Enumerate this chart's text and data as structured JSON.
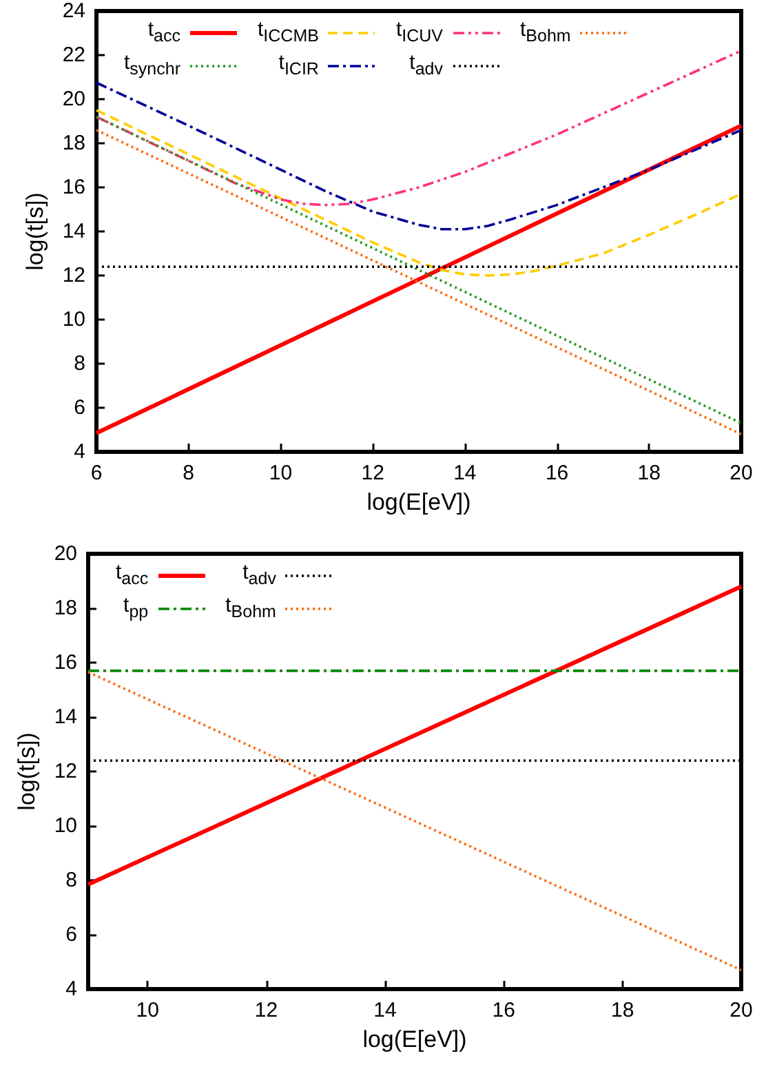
{
  "chart_data": [
    {
      "type": "line",
      "xlabel": "log(E[eV])",
      "ylabel": "log(t[s])",
      "xlim": [
        6,
        20
      ],
      "xticks": [
        6,
        8,
        10,
        12,
        14,
        16,
        18,
        20
      ],
      "ylim": [
        4,
        24
      ],
      "yticks": [
        4,
        6,
        8,
        10,
        12,
        14,
        16,
        18,
        20,
        22,
        24
      ],
      "grid": false,
      "legend": "top",
      "series": [
        {
          "name": "t$_{acc}$",
          "color": "#ff0000",
          "line_style": "solid",
          "x": [
            6,
            20
          ],
          "values": [
            4.85,
            18.8
          ]
        },
        {
          "name": "t$_{IC}$$_{CMB}$",
          "color": "#ffcc00",
          "line_style": "dashed",
          "x": [
            6,
            8,
            10,
            11,
            12,
            13,
            13.5,
            14,
            14.5,
            15,
            15.5,
            16,
            17,
            18,
            19,
            20
          ],
          "values": [
            19.5,
            17.5,
            15.5,
            14.5,
            13.5,
            12.6,
            12.25,
            12.05,
            12.0,
            12.05,
            12.2,
            12.45,
            13.0,
            13.85,
            14.75,
            15.7
          ]
        },
        {
          "name": "t$_{IC}$$_{UV}$",
          "color": "#ff3377",
          "line_style": "dashdotdot",
          "x": [
            6,
            8,
            9,
            10,
            10.5,
            11,
            11.5,
            12,
            13,
            14,
            16,
            18,
            20
          ],
          "values": [
            19.2,
            17.2,
            16.2,
            15.45,
            15.25,
            15.2,
            15.25,
            15.45,
            16.0,
            16.7,
            18.4,
            20.3,
            22.2
          ]
        },
        {
          "name": "t$_{Bohm}$",
          "color": "#ff6600",
          "line_style": "dotted",
          "x": [
            6,
            20
          ],
          "values": [
            18.6,
            4.8
          ]
        },
        {
          "name": "t$_{synchr}$",
          "color": "#229922",
          "line_style": "dotted",
          "x": [
            6,
            20
          ],
          "values": [
            19.2,
            5.3
          ]
        },
        {
          "name": "t$_{IC}$$_{IR}$",
          "color": "#000099",
          "line_style": "dashdot",
          "x": [
            6,
            8,
            10,
            11,
            12,
            13,
            13.5,
            14,
            14.5,
            15,
            16,
            17,
            18,
            19,
            20
          ],
          "values": [
            20.75,
            18.8,
            16.8,
            15.8,
            14.9,
            14.3,
            14.1,
            14.1,
            14.25,
            14.55,
            15.2,
            16.0,
            16.8,
            17.7,
            18.6
          ]
        },
        {
          "name": "t$_{adv}$",
          "color": "#000000",
          "line_style": "dotted",
          "x": [
            6,
            20
          ],
          "values": [
            12.4,
            12.4
          ]
        }
      ]
    },
    {
      "type": "line",
      "xlabel": "log(E[eV])",
      "ylabel": "log(t[s])",
      "xlim": [
        9,
        20
      ],
      "xticks": [
        10,
        12,
        14,
        16,
        18,
        20
      ],
      "ylim": [
        4,
        20
      ],
      "yticks": [
        4,
        6,
        8,
        10,
        12,
        14,
        16,
        18,
        20
      ],
      "grid": false,
      "legend": "top",
      "series": [
        {
          "name": "t$_{acc}$",
          "color": "#ff0000",
          "line_style": "solid",
          "x": [
            9,
            20
          ],
          "values": [
            7.85,
            18.8
          ]
        },
        {
          "name": "t$_{adv}$",
          "color": "#000000",
          "line_style": "dotted",
          "x": [
            9,
            20
          ],
          "values": [
            12.4,
            12.4
          ]
        },
        {
          "name": "t$_{pp}$",
          "color": "#008800",
          "line_style": "dashdot",
          "x": [
            9,
            20
          ],
          "values": [
            15.7,
            15.7
          ]
        },
        {
          "name": "t$_{Bohm}$",
          "color": "#ff6600",
          "line_style": "dotted",
          "x": [
            9,
            20
          ],
          "values": [
            15.65,
            4.7
          ]
        }
      ]
    }
  ]
}
